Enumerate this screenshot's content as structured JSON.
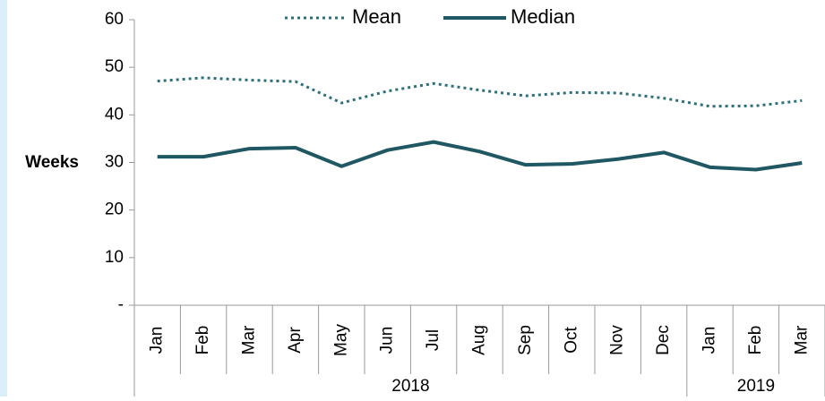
{
  "chart_data": {
    "type": "line",
    "y_label": "Weeks",
    "categories": [
      "Jan",
      "Feb",
      "Mar",
      "Apr",
      "May",
      "Jun",
      "Jul",
      "Aug",
      "Sep",
      "Oct",
      "Nov",
      "Dec",
      "Jan",
      "Feb",
      "Mar"
    ],
    "groups": [
      {
        "label": "2018",
        "count": 12
      },
      {
        "label": "2019",
        "count": 3
      }
    ],
    "series": [
      {
        "name": "Mean",
        "color": "#2e6f7d",
        "style": "dotted",
        "values": [
          47.1,
          47.8,
          47.3,
          47.0,
          42.5,
          45.0,
          46.6,
          45.2,
          44.0,
          44.7,
          44.6,
          43.5,
          41.8,
          41.9,
          43.0
        ]
      },
      {
        "name": "Median",
        "color": "#1f5763",
        "style": "solid",
        "values": [
          31.2,
          31.2,
          32.9,
          33.1,
          29.2,
          32.6,
          34.3,
          32.3,
          29.5,
          29.7,
          30.7,
          32.1,
          29.0,
          28.5,
          29.9
        ]
      }
    ],
    "ylim": [
      0,
      60
    ],
    "yticks": [
      {
        "value": 0,
        "label": "-"
      },
      10,
      20,
      30,
      40,
      50,
      60
    ],
    "legend": "top"
  }
}
